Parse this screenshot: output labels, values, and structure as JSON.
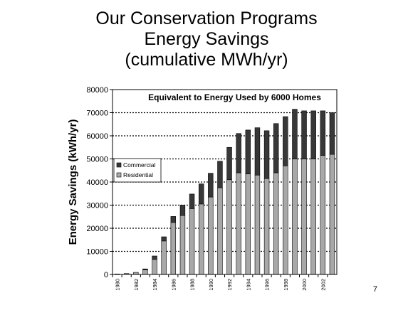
{
  "slide": {
    "title_line1": "Our Conservation Programs",
    "title_line2": "Energy Savings",
    "title_line3": "(cumulative MWh/yr)",
    "page_number": "7"
  },
  "chart_data": {
    "type": "bar",
    "stacked": true,
    "title": "Equivalent to Energy Used by 6000 Homes",
    "xlabel": "",
    "ylabel": "Energy Savings (kWh/yr)",
    "ylim": [
      0,
      80000
    ],
    "yticks": [
      0,
      10000,
      20000,
      30000,
      40000,
      50000,
      60000,
      70000,
      80000
    ],
    "grid": "horizontal-dotted",
    "legend_position": "left-middle",
    "categories": [
      "1980",
      "1981",
      "1982",
      "1983",
      "1984",
      "1985",
      "1986",
      "1987",
      "1988",
      "1989",
      "1990",
      "1991",
      "1992",
      "1993",
      "1994",
      "1995",
      "1996",
      "1997",
      "1998",
      "1999",
      "2000",
      "2001",
      "2002",
      "2003"
    ],
    "xtick_labels": [
      "1980",
      "",
      "1982",
      "",
      "1984",
      "",
      "1986",
      "",
      "1988",
      "",
      "1990",
      "",
      "1992",
      "",
      "1994",
      "",
      "1996",
      "",
      "1998",
      "",
      "2000",
      "",
      "2002",
      ""
    ],
    "series": [
      {
        "name": "Residential",
        "color": "#a8a8a8",
        "values": [
          200,
          400,
          900,
          2000,
          6500,
          14500,
          22500,
          25500,
          28500,
          30500,
          33500,
          37500,
          41000,
          44000,
          43500,
          43000,
          41500,
          44000,
          47000,
          50000,
          50000,
          50000,
          51500,
          52000
        ]
      },
      {
        "name": "Commercial",
        "color": "#383838",
        "values": [
          0,
          0,
          0,
          400,
          1500,
          1800,
          2600,
          4500,
          6300,
          8700,
          10300,
          11500,
          14000,
          17000,
          19000,
          20500,
          20700,
          21300,
          21300,
          21500,
          20800,
          20800,
          19300,
          18000
        ]
      }
    ]
  }
}
